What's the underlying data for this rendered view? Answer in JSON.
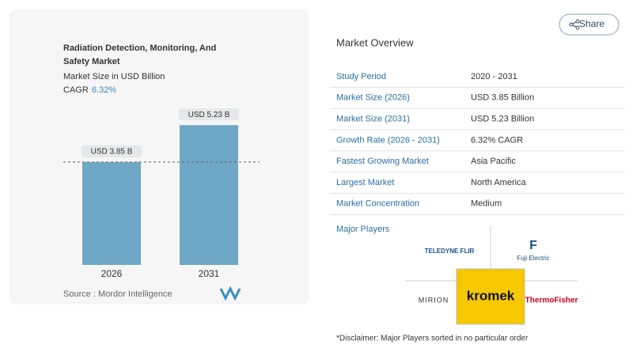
{
  "share": "Share",
  "chart_data": {
    "type": "bar",
    "title": "Radiation Detection, Monitoring, And Safety Market",
    "subtitle": "Market Size in USD Billion",
    "cagr_label": "CAGR",
    "cagr": "6.32%",
    "categories": [
      "2026",
      "2031"
    ],
    "values": [
      3.85,
      5.23
    ],
    "value_labels": [
      "USD 3.85 B",
      "USD 5.23 B"
    ],
    "color": "#6fa8c6",
    "source": "Source :  Mordor Intelligence"
  },
  "overview": {
    "title": "Market Overview",
    "rows": [
      [
        "Study Period",
        "2020 - 2031"
      ],
      [
        "Market Size (2026)",
        "USD 3.85 Billion"
      ],
      [
        "Market Size (2031)",
        "USD 5.23 Billion"
      ],
      [
        "Growth Rate (2026 - 2031)",
        "6.32% CAGR"
      ],
      [
        "Fastest Growing Market",
        "Asia Pacific"
      ],
      [
        "Largest Market",
        "North America"
      ],
      [
        "Market Concentration",
        "Medium"
      ]
    ]
  },
  "players": {
    "title": "Major Players",
    "names": [
      "TELEDYNE FLIR",
      "Fuji Electric",
      "MIRION",
      "kromek",
      "ThermoFisher"
    ]
  },
  "disclaimer": "*Disclaimer: Major Players sorted in no particular order"
}
